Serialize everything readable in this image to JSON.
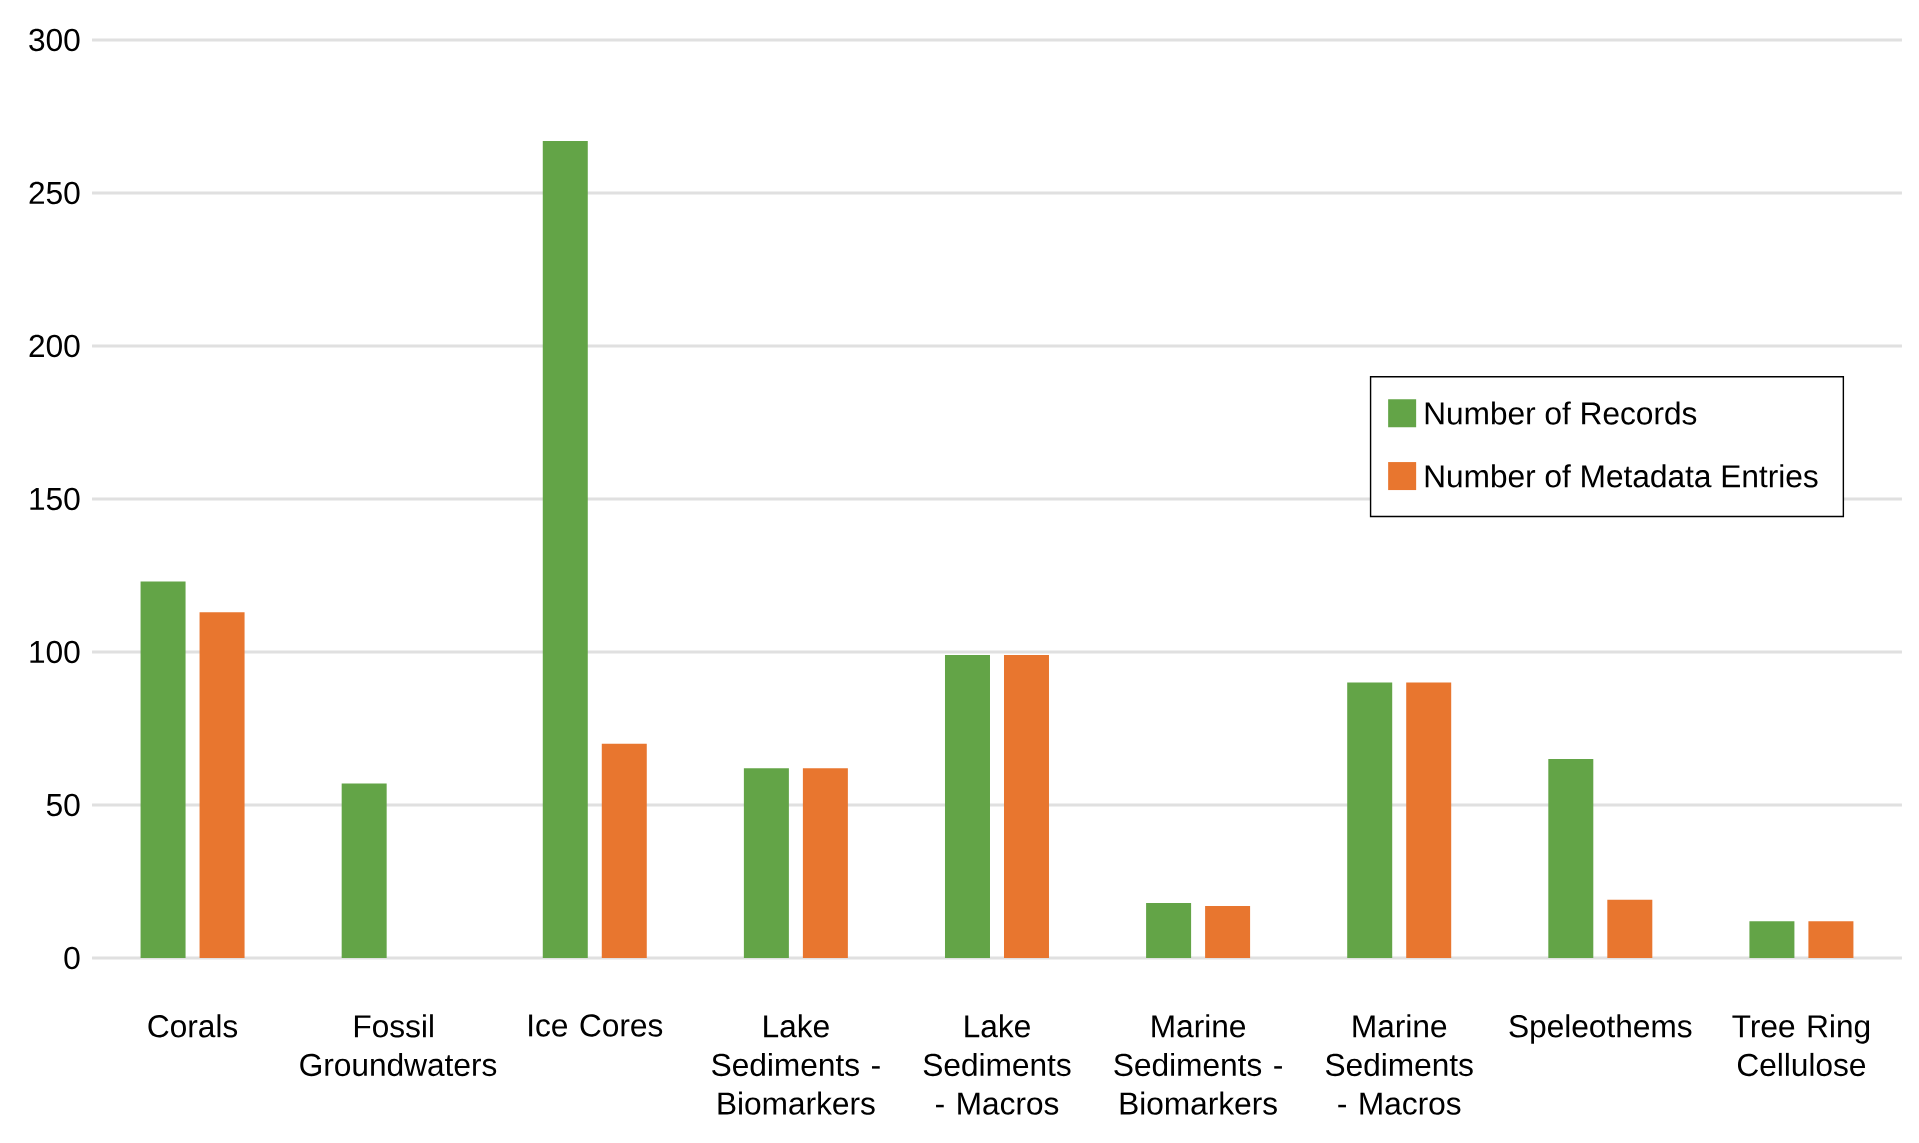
{
  "chart_data": {
    "type": "bar",
    "categories": [
      "Corals",
      "Fossil Groundwaters",
      "Ice Cores",
      "Lake Sediments - Biomarkers",
      "Lake Sediments - Macros",
      "Marine Sediments - Biomarkers",
      "Marine Sediments - Macros",
      "Speleothems",
      "Tree Ring Cellulose"
    ],
    "series": [
      {
        "name": "Number of Records",
        "color": "#63a447",
        "values": [
          123,
          57,
          267,
          62,
          99,
          18,
          90,
          65,
          12
        ]
      },
      {
        "name": "Number of Metadata Entries",
        "color": "#e8762f",
        "values": [
          113,
          null,
          70,
          62,
          99,
          17,
          90,
          19,
          12
        ]
      }
    ],
    "ylim": [
      0,
      300
    ],
    "yticks": [
      0,
      50,
      100,
      150,
      200,
      250,
      300
    ],
    "grid": "y",
    "legend": "right"
  }
}
